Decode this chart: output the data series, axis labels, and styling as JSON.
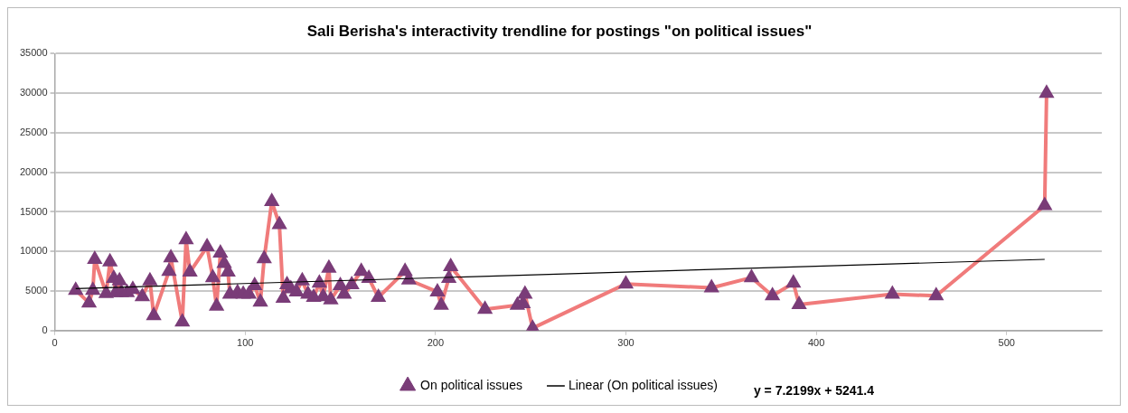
{
  "chart_data": {
    "type": "line",
    "title": "Sali Berisha's interactivity trendline for postings \"on political issues\"",
    "xlim": [
      0,
      550
    ],
    "xticks": [
      0,
      100,
      200,
      300,
      400,
      500
    ],
    "ylim": [
      0,
      35000
    ],
    "yticks": [
      0,
      5000,
      10000,
      15000,
      20000,
      25000,
      30000,
      35000
    ],
    "grid": "y",
    "legend": "bottom",
    "marker": "triangle",
    "line_style": "solid",
    "annotations": [
      "y = 7.2199x + 5241.4"
    ],
    "series": [
      {
        "name": "On political issues",
        "color": "#f07b7b",
        "x": [
          11,
          18,
          20,
          21,
          27,
          29,
          31,
          32,
          34,
          35,
          38,
          41,
          46,
          50,
          52,
          60,
          61,
          67,
          69,
          71,
          80,
          83,
          85,
          87,
          89,
          91,
          92,
          96,
          99,
          102,
          105,
          108,
          110,
          114,
          118,
          120,
          122,
          124,
          127,
          130,
          133,
          136,
          139,
          141,
          144,
          145,
          150,
          152,
          156,
          161,
          165,
          170,
          184,
          186,
          201,
          203,
          207,
          208,
          226,
          243,
          246,
          247,
          251,
          300,
          345,
          366,
          377,
          388,
          391,
          440,
          463,
          520,
          521
        ],
        "values": [
          5100,
          3500,
          5100,
          9000,
          4700,
          8700,
          6600,
          4800,
          6300,
          4800,
          4800,
          5200,
          4300,
          6300,
          1900,
          7500,
          9200,
          1100,
          11500,
          7400,
          10600,
          6700,
          3100,
          9800,
          8500,
          7400,
          4600,
          4800,
          4600,
          4600,
          5700,
          3600,
          9100,
          16300,
          13400,
          4100,
          5800,
          5300,
          4900,
          6300,
          4600,
          4200,
          6000,
          4300,
          7900,
          3900,
          5700,
          4600,
          5800,
          7500,
          6600,
          4200,
          7500,
          6400,
          4900,
          3200,
          6600,
          8100,
          2700,
          3200,
          3400,
          4600,
          300,
          5900,
          5400,
          6700,
          4400,
          6000,
          3300,
          4600,
          4400,
          15800,
          30000
        ]
      },
      {
        "name": "Linear (On political issues)",
        "type": "line",
        "color": "#000000",
        "marker": "none",
        "x": [
          11,
          520
        ],
        "values": [
          5300,
          9000
        ]
      }
    ]
  }
}
